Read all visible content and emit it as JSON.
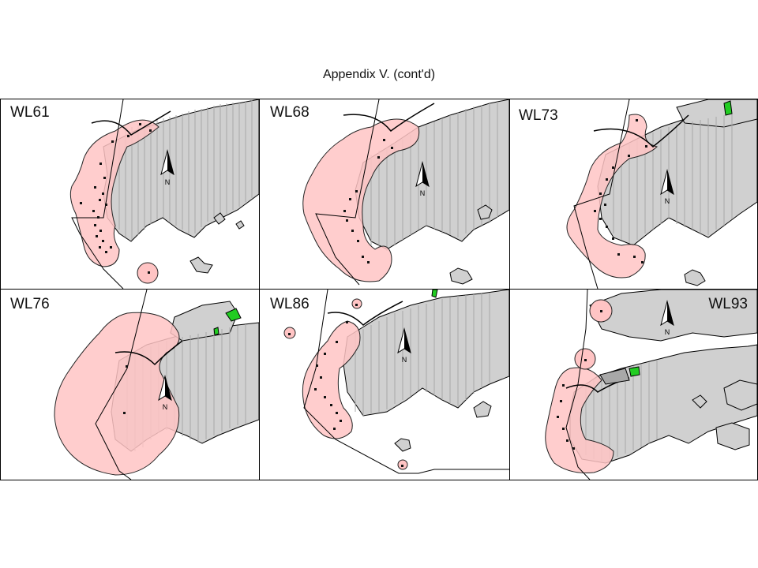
{
  "title": "Appendix V.  (cont'd)",
  "colors": {
    "land": "#d0d0d0",
    "range": "#ffc4c4",
    "range_stroke": "#222222",
    "marker": "#111111",
    "green_patch": "#22cc22"
  },
  "north_arrow_label": "N",
  "panels": [
    {
      "label": "WL61"
    },
    {
      "label": "WL68"
    },
    {
      "label": "WL73"
    },
    {
      "label": "WL76"
    },
    {
      "label": "WL86"
    },
    {
      "label": "WL93"
    }
  ]
}
